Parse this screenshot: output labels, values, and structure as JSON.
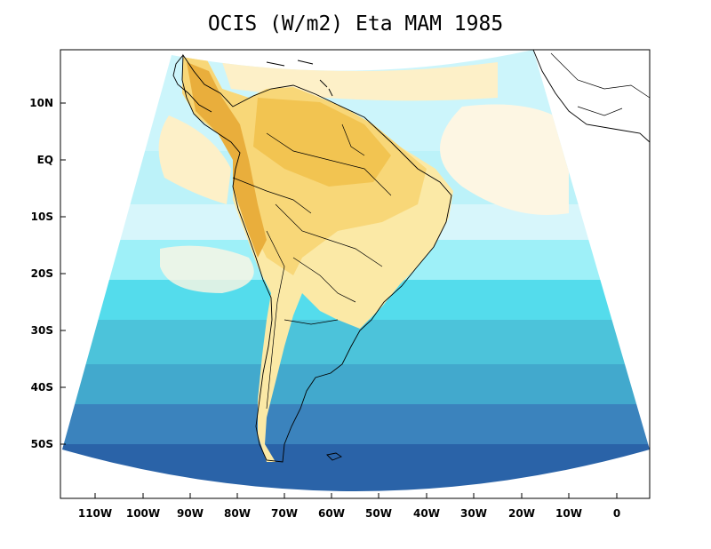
{
  "title": "OCIS (W/m2) Eta MAM 1985",
  "axes": {
    "y_ticks": [
      "10N",
      "EQ",
      "10S",
      "20S",
      "30S",
      "40S",
      "50S"
    ],
    "x_ticks": [
      "110W",
      "100W",
      "90W",
      "80W",
      "70W",
      "60W",
      "50W",
      "40W",
      "30W",
      "20W",
      "10W",
      "0"
    ]
  },
  "palette": {
    "deep_blue": "#2a63a8",
    "blue": "#3b83bd",
    "mid_blue": "#42a9cd",
    "teal": "#4cc3da",
    "cyan": "#54dcec",
    "light_cyan": "#9ef0f8",
    "pale_cyan": "#ccf5fb",
    "cream": "#fdf6e3",
    "light_yellow": "#fbe9a6",
    "yellow": "#f8d778",
    "gold": "#f2c451",
    "orange": "#e9ae3c"
  }
}
